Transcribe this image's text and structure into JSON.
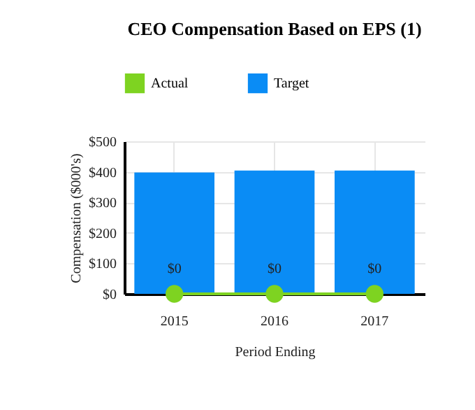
{
  "chart_data": {
    "type": "bar",
    "title": "CEO Compensation Based on EPS (1)",
    "xlabel": "Period Ending",
    "ylabel": "Compensation ($000's)",
    "categories": [
      "2015",
      "2016",
      "2017"
    ],
    "series": [
      {
        "name": "Actual",
        "type": "line",
        "color": "#7ed321",
        "values": [
          0,
          0,
          0
        ],
        "value_labels": [
          "$0",
          "$0",
          "$0"
        ]
      },
      {
        "name": "Target",
        "color": "#0a8cf5",
        "values": [
          398,
          404,
          404
        ]
      }
    ],
    "ylim": [
      0,
      500
    ],
    "yticks": [
      {
        "value": 0,
        "label": "$0"
      },
      {
        "value": 100,
        "label": "$100"
      },
      {
        "value": 200,
        "label": "$200"
      },
      {
        "value": 300,
        "label": "$300"
      },
      {
        "value": 400,
        "label": "$400"
      },
      {
        "value": 500,
        "label": "$500"
      }
    ],
    "grid": true,
    "legend": "top",
    "marker": "circle"
  }
}
